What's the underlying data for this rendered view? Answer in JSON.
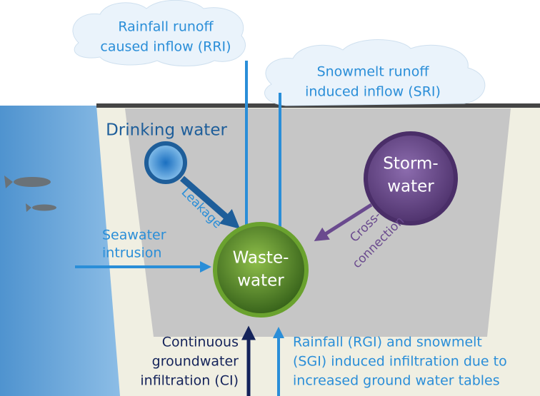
{
  "rri": [
    "Rainfall runoff",
    "caused inflow (RRI)"
  ],
  "sri": [
    "Snowmelt runoff",
    "induced inflow (SRI)"
  ],
  "drinking": "Drinking water",
  "leakage": "Leakage",
  "storm": [
    "Storm-",
    "water"
  ],
  "cross": [
    "Cross-",
    "connection"
  ],
  "seawater": [
    "Seawater",
    "intrusion"
  ],
  "waste": [
    "Waste-",
    "water"
  ],
  "ci": [
    "Continuous",
    "groundwater",
    "infiltration (CI)"
  ],
  "rgi": [
    "Rainfall (RGI) and snowmelt",
    "(SGI) induced infiltration due to",
    "increased ground water tables"
  ]
}
